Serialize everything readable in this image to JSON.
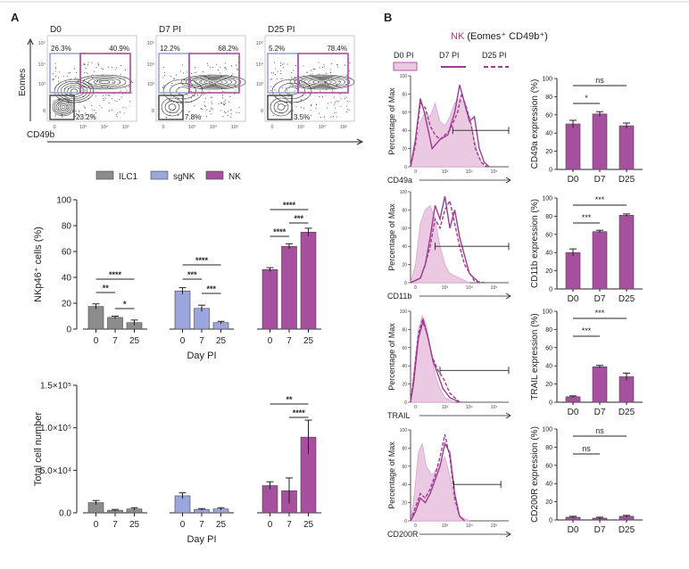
{
  "panel_labels": {
    "a": "A",
    "b": "B"
  },
  "flow": {
    "timepoints": [
      "D0",
      "D7 PI",
      "D25 PI"
    ],
    "y_axis_label": "Eomes",
    "x_axis_label": "CD49b",
    "tick_labels": [
      "0",
      "10³",
      "10⁴",
      "10⁵"
    ],
    "gate_percentages": [
      {
        "sgNK": "26.3%",
        "NK": "40.9%",
        "ILC1": "23.2%"
      },
      {
        "sgNK": "12.2%",
        "NK": "68.2%",
        "ILC1": "7.8%"
      },
      {
        "sgNK": "5.2%",
        "NK": "78.4%",
        "ILC1": "3.5%"
      }
    ]
  },
  "colors": {
    "ILC1": "#8c8c8c",
    "sgNK": "#9ba6dc",
    "NK": "#a7509f",
    "NK_title": "#a23a8e",
    "fill_D0": "#ecc9e3",
    "line": "#9b3c8f"
  },
  "chart_data": [
    {
      "type": "bar",
      "title": "",
      "categories": [
        "0",
        "7",
        "25"
      ],
      "groups": [
        "ILC1",
        "sgNK",
        "NK"
      ],
      "series": [
        {
          "name": "ILC1",
          "values": [
            17.5,
            9,
            5
          ],
          "errors": [
            2,
            1,
            2
          ]
        },
        {
          "name": "sgNK",
          "values": [
            29.5,
            16,
            5
          ],
          "errors": [
            2.5,
            2.5,
            1
          ]
        },
        {
          "name": "NK",
          "values": [
            46,
            64,
            75
          ],
          "errors": [
            1.5,
            2,
            3
          ]
        }
      ],
      "xlabel": "Day PI",
      "ylabel": "NKp46⁺ cells (%)",
      "ylim": [
        0,
        100
      ],
      "yticks": [
        "0",
        "20",
        "40",
        "60",
        "80",
        "100"
      ],
      "legend": [
        "ILC1",
        "sgNK",
        "NK"
      ],
      "significance": [
        "**",
        "****",
        "*",
        "***",
        "****",
        "***",
        "****",
        "****",
        "***"
      ]
    },
    {
      "type": "bar",
      "categories": [
        "0",
        "7",
        "25"
      ],
      "groups": [
        "ILC1",
        "sgNK",
        "NK"
      ],
      "series": [
        {
          "name": "ILC1",
          "values": [
            12000,
            3000,
            4500
          ],
          "errors": [
            2500,
            1000,
            1500
          ]
        },
        {
          "name": "sgNK",
          "values": [
            20000,
            4000,
            4500
          ],
          "errors": [
            3500,
            1000,
            1500
          ]
        },
        {
          "name": "NK",
          "values": [
            32000,
            26000,
            89000
          ],
          "errors": [
            4500,
            15000,
            20000
          ]
        }
      ],
      "xlabel": "Day PI",
      "ylabel": "Total cell number",
      "ylim": [
        0,
        150000
      ],
      "yticks": [
        "0.0",
        "5.0×10⁴",
        "1.0×10⁵",
        "1.5×10⁵"
      ],
      "significance": [
        "**",
        "****"
      ]
    },
    {
      "type": "bar",
      "categories": [
        "D0",
        "D7",
        "D25"
      ],
      "values": [
        50,
        61,
        48
      ],
      "errors": [
        4,
        2.5,
        3
      ],
      "ylabel": "CD49a expression (%)",
      "ylim": [
        0,
        100
      ],
      "yticks": [
        "0",
        "20",
        "40",
        "60",
        "80",
        "100"
      ],
      "significance": [
        "ns",
        "*"
      ]
    },
    {
      "type": "bar",
      "categories": [
        "D0",
        "D7",
        "D25"
      ],
      "values": [
        40,
        63,
        81
      ],
      "errors": [
        4,
        1.5,
        1.5
      ],
      "ylabel": "CD11b expression (%)",
      "ylim": [
        0,
        100
      ],
      "yticks": [
        "0",
        "20",
        "40",
        "60",
        "80",
        "100"
      ],
      "significance": [
        "***",
        "***"
      ]
    },
    {
      "type": "bar",
      "categories": [
        "D0",
        "D7",
        "D25"
      ],
      "values": [
        6,
        39,
        28
      ],
      "errors": [
        1,
        1.5,
        4
      ],
      "ylabel": "TRAIL expression (%)",
      "ylim": [
        0,
        100
      ],
      "yticks": [
        "0",
        "20",
        "40",
        "60",
        "80",
        "100"
      ],
      "significance": [
        "***",
        "***"
      ]
    },
    {
      "type": "bar",
      "categories": [
        "D0",
        "D7",
        "D25"
      ],
      "values": [
        3,
        2,
        4
      ],
      "errors": [
        1,
        1,
        1
      ],
      "ylabel": "CD200R expression (%)",
      "ylim": [
        0,
        100
      ],
      "yticks": [
        "0",
        "20",
        "40",
        "60",
        "80",
        "100"
      ],
      "significance": [
        "ns",
        "ns"
      ]
    }
  ],
  "histograms": {
    "title_nk": "NK",
    "title_rest": " (Eomes⁺ CD49b⁺)",
    "legend": [
      "D0 PI",
      "D7 PI",
      "D25 PI"
    ],
    "y_axis_label": "Percentage of Max",
    "markers": [
      "CD49a",
      "CD11b",
      "TRAIL",
      "CD200R"
    ],
    "y_ticks": [
      "0",
      "20",
      "40",
      "60",
      "80",
      "100"
    ],
    "x_ticks": [
      "0",
      "10³",
      "10⁴",
      "10⁵"
    ]
  }
}
